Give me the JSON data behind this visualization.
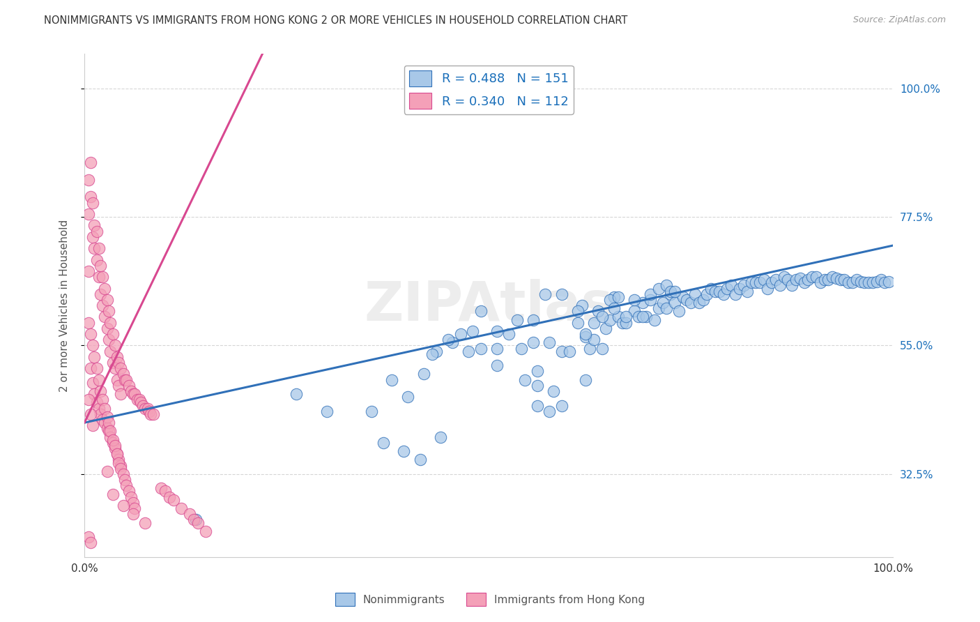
{
  "title": "NONIMMIGRANTS VS IMMIGRANTS FROM HONG KONG 2 OR MORE VEHICLES IN HOUSEHOLD CORRELATION CHART",
  "source": "Source: ZipAtlas.com",
  "ylabel": "2 or more Vehicles in Household",
  "ytick_labels": [
    "100.0%",
    "77.5%",
    "55.0%",
    "32.5%"
  ],
  "ytick_values": [
    1.0,
    0.775,
    0.55,
    0.325
  ],
  "xlim": [
    0.0,
    1.0
  ],
  "ylim": [
    0.18,
    1.06
  ],
  "blue_color": "#a8c8e8",
  "pink_color": "#f4a0b8",
  "blue_line_color": "#3070b8",
  "pink_line_color": "#d84890",
  "legend_text_color": "#1a6fba",
  "watermark": "ZIPAtlas",
  "blue_trend_x0": 0.0,
  "blue_trend_y0": 0.415,
  "blue_trend_x1": 1.0,
  "blue_trend_y1": 0.725,
  "pink_trend_x0": 0.0,
  "pink_trend_y0": 0.415,
  "pink_trend_x1": 0.22,
  "pink_trend_y1": 1.06,
  "nonimmigrants_x": [
    0.138,
    0.262,
    0.3,
    0.355,
    0.38,
    0.4,
    0.42,
    0.435,
    0.455,
    0.475,
    0.49,
    0.51,
    0.51,
    0.525,
    0.54,
    0.555,
    0.56,
    0.575,
    0.59,
    0.6,
    0.61,
    0.615,
    0.62,
    0.625,
    0.63,
    0.635,
    0.645,
    0.65,
    0.655,
    0.66,
    0.665,
    0.67,
    0.68,
    0.685,
    0.69,
    0.695,
    0.7,
    0.705,
    0.71,
    0.715,
    0.72,
    0.725,
    0.73,
    0.735,
    0.74,
    0.745,
    0.75,
    0.755,
    0.76,
    0.765,
    0.77,
    0.775,
    0.78,
    0.785,
    0.79,
    0.795,
    0.8,
    0.805,
    0.81,
    0.815,
    0.82,
    0.825,
    0.83,
    0.835,
    0.84,
    0.845,
    0.85,
    0.855,
    0.86,
    0.865,
    0.87,
    0.875,
    0.88,
    0.885,
    0.89,
    0.895,
    0.9,
    0.905,
    0.91,
    0.915,
    0.92,
    0.925,
    0.93,
    0.935,
    0.94,
    0.945,
    0.95,
    0.955,
    0.96,
    0.965,
    0.97,
    0.975,
    0.98,
    0.985,
    0.99,
    0.995,
    0.43,
    0.45,
    0.465,
    0.48,
    0.49,
    0.51,
    0.535,
    0.555,
    0.57,
    0.59,
    0.61,
    0.63,
    0.65,
    0.67,
    0.69,
    0.7,
    0.71,
    0.72,
    0.725,
    0.73,
    0.62,
    0.64,
    0.655,
    0.66,
    0.68,
    0.545,
    0.56,
    0.58,
    0.37,
    0.395,
    0.415,
    0.44,
    0.56,
    0.575,
    0.59,
    0.62,
    0.64
  ],
  "nonimmigrants_y": [
    0.245,
    0.465,
    0.435,
    0.435,
    0.49,
    0.46,
    0.5,
    0.54,
    0.555,
    0.54,
    0.545,
    0.545,
    0.515,
    0.57,
    0.545,
    0.555,
    0.505,
    0.555,
    0.54,
    0.54,
    0.59,
    0.62,
    0.565,
    0.545,
    0.56,
    0.61,
    0.58,
    0.595,
    0.635,
    0.6,
    0.59,
    0.59,
    0.61,
    0.6,
    0.625,
    0.6,
    0.63,
    0.595,
    0.615,
    0.625,
    0.615,
    0.64,
    0.625,
    0.61,
    0.635,
    0.63,
    0.625,
    0.64,
    0.625,
    0.63,
    0.64,
    0.65,
    0.645,
    0.645,
    0.64,
    0.65,
    0.655,
    0.64,
    0.65,
    0.655,
    0.645,
    0.66,
    0.66,
    0.66,
    0.665,
    0.65,
    0.66,
    0.665,
    0.655,
    0.67,
    0.665,
    0.655,
    0.665,
    0.668,
    0.66,
    0.665,
    0.67,
    0.67,
    0.66,
    0.665,
    0.665,
    0.67,
    0.668,
    0.665,
    0.665,
    0.66,
    0.66,
    0.665,
    0.662,
    0.66,
    0.66,
    0.66,
    0.662,
    0.665,
    0.66,
    0.662,
    0.535,
    0.56,
    0.57,
    0.575,
    0.61,
    0.575,
    0.595,
    0.595,
    0.64,
    0.64,
    0.61,
    0.59,
    0.63,
    0.6,
    0.6,
    0.64,
    0.65,
    0.655,
    0.645,
    0.645,
    0.57,
    0.6,
    0.615,
    0.635,
    0.63,
    0.49,
    0.48,
    0.47,
    0.38,
    0.365,
    0.35,
    0.39,
    0.445,
    0.435,
    0.445,
    0.49,
    0.545
  ],
  "immigrants_x": [
    0.005,
    0.005,
    0.008,
    0.008,
    0.01,
    0.01,
    0.012,
    0.012,
    0.015,
    0.015,
    0.018,
    0.018,
    0.02,
    0.02,
    0.022,
    0.022,
    0.025,
    0.025,
    0.028,
    0.028,
    0.03,
    0.03,
    0.032,
    0.032,
    0.035,
    0.035,
    0.038,
    0.038,
    0.04,
    0.04,
    0.042,
    0.042,
    0.045,
    0.045,
    0.048,
    0.05,
    0.052,
    0.055,
    0.058,
    0.06,
    0.062,
    0.065,
    0.068,
    0.07,
    0.072,
    0.075,
    0.078,
    0.08,
    0.082,
    0.085,
    0.008,
    0.01,
    0.012,
    0.015,
    0.018,
    0.02,
    0.022,
    0.025,
    0.028,
    0.03,
    0.032,
    0.035,
    0.038,
    0.04,
    0.042,
    0.045,
    0.005,
    0.008,
    0.01,
    0.095,
    0.1,
    0.105,
    0.11,
    0.12,
    0.13,
    0.135,
    0.14,
    0.15,
    0.005,
    0.005,
    0.008,
    0.01,
    0.012,
    0.015,
    0.018,
    0.02,
    0.022,
    0.025,
    0.028,
    0.03,
    0.032,
    0.035,
    0.038,
    0.04,
    0.042,
    0.045,
    0.048,
    0.05,
    0.052,
    0.055,
    0.058,
    0.06,
    0.062,
    0.005,
    0.008,
    0.028,
    0.035,
    0.048,
    0.06,
    0.075
  ],
  "immigrants_y": [
    0.84,
    0.78,
    0.87,
    0.81,
    0.8,
    0.74,
    0.76,
    0.72,
    0.75,
    0.7,
    0.72,
    0.67,
    0.69,
    0.64,
    0.67,
    0.62,
    0.65,
    0.6,
    0.63,
    0.58,
    0.61,
    0.56,
    0.59,
    0.54,
    0.57,
    0.52,
    0.55,
    0.51,
    0.53,
    0.49,
    0.52,
    0.48,
    0.51,
    0.465,
    0.5,
    0.49,
    0.49,
    0.48,
    0.47,
    0.465,
    0.465,
    0.455,
    0.455,
    0.45,
    0.445,
    0.44,
    0.44,
    0.435,
    0.43,
    0.43,
    0.51,
    0.485,
    0.465,
    0.45,
    0.44,
    0.43,
    0.42,
    0.415,
    0.405,
    0.4,
    0.39,
    0.38,
    0.37,
    0.36,
    0.35,
    0.34,
    0.455,
    0.43,
    0.41,
    0.3,
    0.295,
    0.285,
    0.28,
    0.265,
    0.255,
    0.245,
    0.24,
    0.225,
    0.68,
    0.59,
    0.57,
    0.55,
    0.53,
    0.51,
    0.49,
    0.47,
    0.455,
    0.44,
    0.425,
    0.415,
    0.4,
    0.385,
    0.375,
    0.36,
    0.345,
    0.335,
    0.325,
    0.315,
    0.305,
    0.295,
    0.285,
    0.275,
    0.265,
    0.215,
    0.205,
    0.33,
    0.29,
    0.27,
    0.255,
    0.24
  ]
}
